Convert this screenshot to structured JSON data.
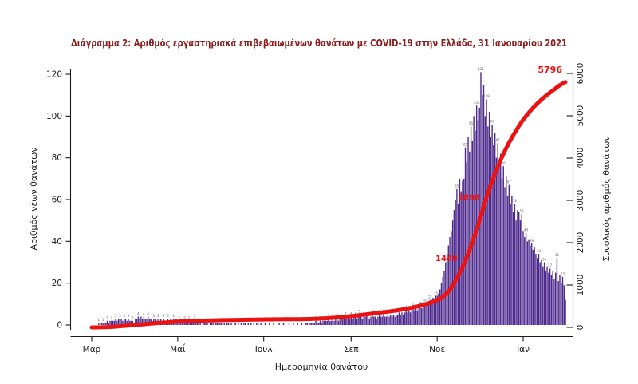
{
  "title": "Διάγραμμα 2: Αριθμός εργαστηριακά επιβεβαιωμένων θανάτων με COVID-19 στην Ελλάδα, 31 Ιανουαρίου 2021",
  "colors": {
    "bars": "#4e2a8e",
    "cumulative_line": "#ec1212",
    "title_text": "#8b1d1d",
    "axis": "#1a1a1a",
    "bar_labels": "#6a6a6a"
  },
  "chart_data": {
    "type": "bar+line",
    "description": "Daily laboratory-confirmed COVID-19 deaths in Greece (purple bars, left axis) with cumulative total deaths (red line, right axis), 1 Mar 2020 - 31 Jan 2021",
    "x_axis": {
      "label": "Ημερομηνία θανάτου",
      "tick_labels": [
        "Μαρ",
        "Μαΐ",
        "Ιουλ",
        "Σεπ",
        "Νοε",
        "Ιαν"
      ],
      "tick_day_offsets": [
        0,
        61,
        122,
        184,
        245,
        306
      ],
      "total_days": 337
    },
    "y_left": {
      "label": "Αριθμός νέων θανάτων",
      "ticks": [
        0,
        20,
        40,
        60,
        80,
        100,
        120
      ],
      "range": [
        0,
        120
      ],
      "series": "daily_deaths"
    },
    "y_right": {
      "label": "Συνολικός αριθμός θανάτων",
      "ticks": [
        0,
        1000,
        2000,
        3000,
        4000,
        5000,
        6000
      ],
      "range": [
        0,
        6000
      ],
      "series": "cumulative"
    },
    "daily_deaths": [
      0,
      0,
      0,
      0,
      0,
      1,
      0,
      1,
      1,
      1,
      1,
      2,
      1,
      2,
      2,
      2,
      2,
      3,
      2,
      3,
      3,
      3,
      2,
      3,
      3,
      2,
      3,
      2,
      2,
      2,
      1,
      3,
      3,
      4,
      3,
      4,
      3,
      4,
      3,
      3,
      4,
      3,
      3,
      2,
      3,
      3,
      2,
      3,
      2,
      3,
      2,
      3,
      2,
      2,
      3,
      2,
      3,
      2,
      3,
      3,
      3,
      2,
      2,
      1,
      2,
      1,
      2,
      1,
      1,
      2,
      1,
      1,
      1,
      2,
      1,
      1,
      1,
      1,
      0,
      1,
      1,
      1,
      1,
      0,
      1,
      1,
      1,
      0,
      1,
      1,
      1,
      1,
      1,
      0,
      1,
      0,
      1,
      1,
      0,
      1,
      0,
      1,
      1,
      0,
      1,
      0,
      1,
      0,
      1,
      1,
      0,
      1,
      0,
      1,
      0,
      1,
      0,
      1,
      1,
      0,
      1,
      0,
      0,
      1,
      0,
      0,
      1,
      0,
      0,
      1,
      0,
      0,
      0,
      1,
      0,
      0,
      1,
      0,
      0,
      0,
      1,
      0,
      0,
      1,
      0,
      0,
      1,
      0,
      0,
      1,
      0,
      0,
      1,
      1,
      0,
      1,
      1,
      1,
      1,
      2,
      1,
      1,
      2,
      1,
      2,
      2,
      2,
      2,
      3,
      2,
      2,
      3,
      2,
      3,
      3,
      2,
      3,
      3,
      3,
      3,
      4,
      3,
      4,
      3,
      4,
      3,
      4,
      4,
      3,
      4,
      5,
      4,
      3,
      4,
      4,
      5,
      4,
      3,
      4,
      5,
      4,
      4,
      3,
      4,
      5,
      4,
      4,
      5,
      4,
      4,
      5,
      4,
      5,
      4,
      5,
      4,
      5,
      5,
      6,
      5,
      6,
      5,
      6,
      7,
      6,
      7,
      6,
      7,
      8,
      7,
      8,
      7,
      8,
      9,
      8,
      9,
      10,
      9,
      10,
      11,
      12,
      11,
      13,
      12,
      14,
      14,
      15,
      17,
      20,
      23,
      26,
      30,
      34,
      38,
      42,
      45,
      50,
      55,
      60,
      65,
      58,
      70,
      64,
      69,
      70,
      85,
      78,
      90,
      83,
      95,
      88,
      100,
      93,
      105,
      98,
      104,
      121,
      110,
      115,
      100,
      108,
      95,
      102,
      90,
      96,
      86,
      92,
      80,
      87,
      76,
      82,
      70,
      76,
      66,
      71,
      62,
      67,
      58,
      62,
      54,
      58,
      50,
      55,
      54,
      50,
      53,
      45,
      42,
      44,
      40,
      41,
      38,
      39,
      36,
      37,
      34,
      32,
      34,
      30,
      31,
      28,
      30,
      26,
      28,
      25,
      27,
      24,
      26,
      22,
      25,
      32,
      21,
      24,
      20,
      23,
      19,
      12
    ],
    "cumulative_total": 5796,
    "annotations": [
      {
        "text": "1449",
        "day": 264,
        "value": 1449
      },
      {
        "text": "2898",
        "day": 280,
        "value": 2898
      },
      {
        "text": "5796",
        "day": 336,
        "value": 5796,
        "final": true
      }
    ]
  }
}
